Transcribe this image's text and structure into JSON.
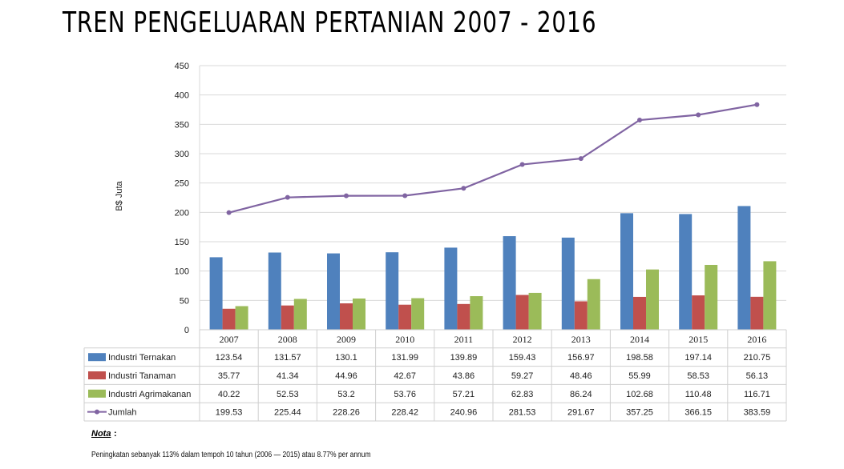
{
  "title": "TREN PENGELUARAN PERTANIAN 2007 - 2016",
  "note_label": "Nota",
  "note_colon": ":",
  "note_text": "Peningkatan sebanyak 113% dalam tempoh 10 tahun (2006 — 2015) atau 8.77% per annum",
  "chart_data": {
    "type": "bar",
    "ylabel": "B$ Juta",
    "xlabel": "",
    "ylim": [
      0,
      450
    ],
    "yticks": [
      0,
      50,
      100,
      150,
      200,
      250,
      300,
      350,
      400,
      450
    ],
    "grid": true,
    "categories": [
      "2007",
      "2008",
      "2009",
      "2010",
      "2011",
      "2012",
      "2013",
      "2014",
      "2015",
      "2016"
    ],
    "series": [
      {
        "name": "Industri Ternakan",
        "type": "bar",
        "color": "#4F81BD",
        "values": [
          123.54,
          131.57,
          130.1,
          131.99,
          139.89,
          159.43,
          156.97,
          198.58,
          197.14,
          210.75
        ],
        "labels": [
          "123.54",
          "131.57",
          "130.1",
          "131.99",
          "139.89",
          "159.43",
          "156.97",
          "198.58",
          "197.14",
          "210.75"
        ]
      },
      {
        "name": "Industri Tanaman",
        "type": "bar",
        "color": "#C0504D",
        "values": [
          35.77,
          41.34,
          44.96,
          42.67,
          43.86,
          59.27,
          48.46,
          55.99,
          58.53,
          56.13
        ],
        "labels": [
          "35.77",
          "41.34",
          "44.96",
          "42.67",
          "43.86",
          "59.27",
          "48.46",
          "55.99",
          "58.53",
          "56.13"
        ]
      },
      {
        "name": "Industri Agrimakanan",
        "type": "bar",
        "color": "#9BBB59",
        "values": [
          40.22,
          52.53,
          53.2,
          53.76,
          57.21,
          62.83,
          86.24,
          102.68,
          110.48,
          116.71
        ],
        "labels": [
          "40.22",
          "52.53",
          "53.2",
          "53.76",
          "57.21",
          "62.83",
          "86.24",
          "102.68",
          "110.48",
          "116.71"
        ]
      },
      {
        "name": "Jumlah",
        "type": "line",
        "color": "#8064A2",
        "values": [
          199.53,
          225.44,
          228.26,
          228.42,
          240.96,
          281.53,
          291.67,
          357.25,
          366.15,
          383.59
        ],
        "labels": [
          "199.53",
          "225.44",
          "228.26",
          "228.42",
          "240.96",
          "281.53",
          "291.67",
          "357.25",
          "366.15",
          "383.59"
        ]
      }
    ]
  }
}
